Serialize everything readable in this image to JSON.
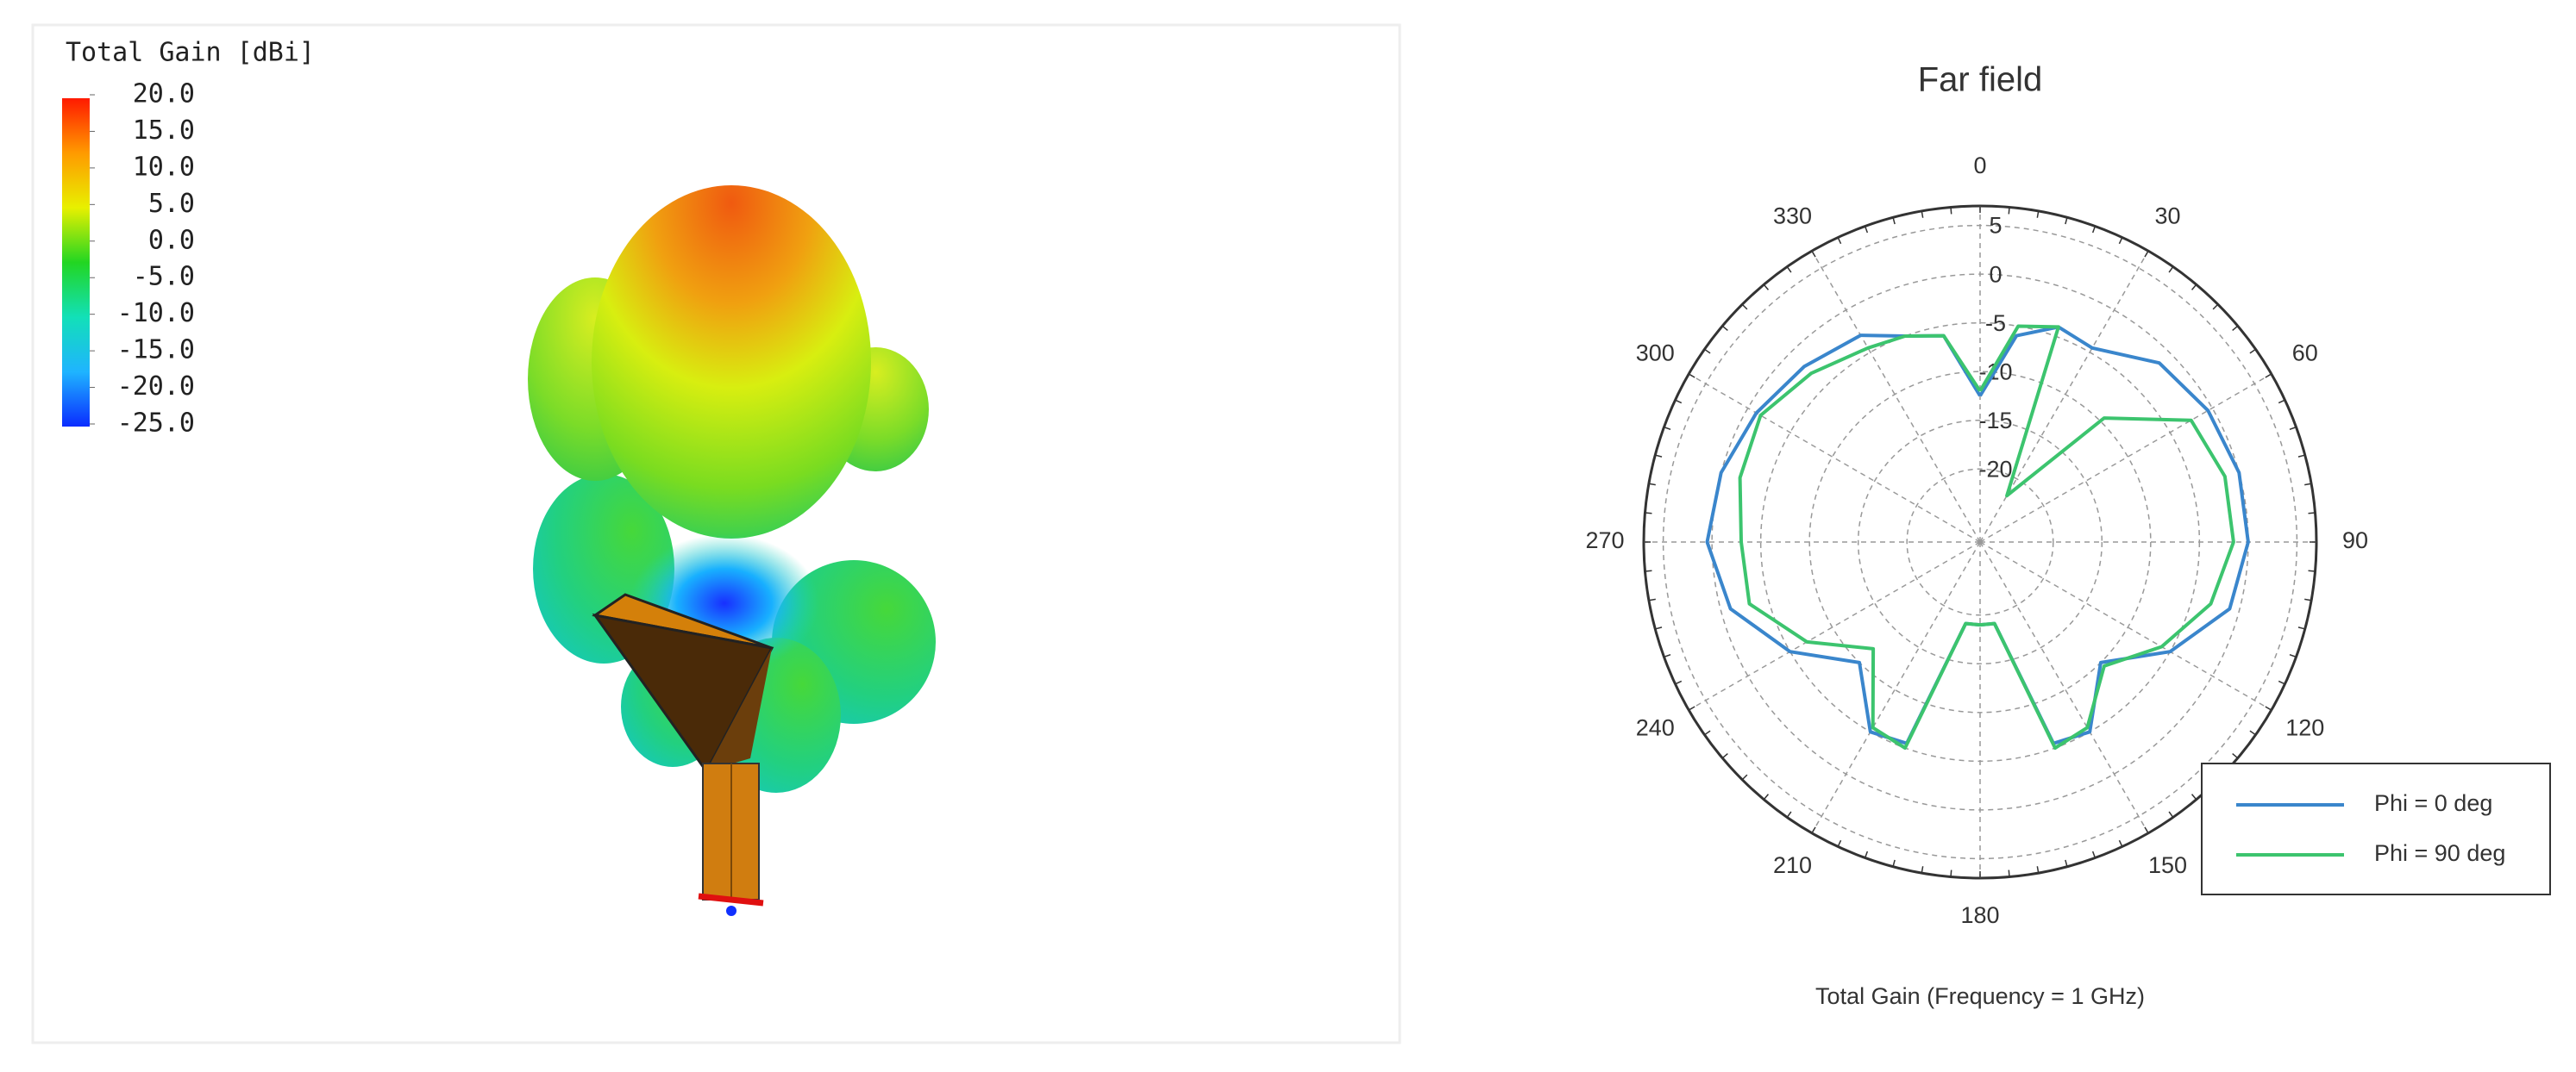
{
  "chart_data": [
    {
      "type": "colorbar",
      "title": "Total Gain [dBi]",
      "ylim": [
        -25,
        20
      ],
      "yticks": [
        {
          "value": 20,
          "label": "20.0"
        },
        {
          "value": 15,
          "label": "15.0"
        },
        {
          "value": 10,
          "label": "10.0"
        },
        {
          "value": 5,
          "label": "5.0"
        },
        {
          "value": 0,
          "label": "0.0"
        },
        {
          "value": -5,
          "label": "-5.0"
        },
        {
          "value": -10,
          "label": "-10.0"
        },
        {
          "value": -15,
          "label": "-15.0"
        },
        {
          "value": -20,
          "label": "-20.0"
        },
        {
          "value": -25,
          "label": "-25.0"
        }
      ],
      "colormap": [
        "#ff1a00",
        "#ff9a00",
        "#e8f000",
        "#22d622",
        "#12e0b8",
        "#1fb4ff",
        "#0a2cff"
      ]
    },
    {
      "type": "polar",
      "title": "Far field",
      "xlabel": "Total Gain (Frequency = 1 GHz)",
      "x": [
        0,
        10,
        20,
        30,
        45,
        60,
        75,
        90,
        105,
        120,
        135,
        150,
        160,
        170,
        180,
        190,
        200,
        210,
        225,
        240,
        255,
        270,
        285,
        300,
        315,
        330,
        340,
        350,
        360
      ],
      "xticks": [
        0,
        30,
        60,
        90,
        120,
        150,
        180,
        210,
        240,
        270,
        300,
        330
      ],
      "rlim": [
        -27.5,
        7
      ],
      "rticks": [
        5,
        0,
        -5,
        -10,
        -15,
        -20
      ],
      "grid": true,
      "legend": "lower right",
      "series": [
        {
          "name": "Phi = 0 deg",
          "color": "#3a86cc",
          "values": [
            -12.5,
            -6,
            -4,
            -4.5,
            -1.5,
            -0.5,
            0,
            0,
            -1,
            -5,
            -10,
            -5,
            -5.5,
            -19,
            -19,
            -19,
            -5.5,
            -5,
            -10,
            -5,
            -1,
            0.5,
            0,
            -1,
            -2,
            -3,
            -5,
            -6,
            -12.5
          ]
        },
        {
          "name": "Phi = 90 deg",
          "color": "#3cc46e",
          "values": [
            -12,
            -5,
            -4,
            -22,
            -9.5,
            -2.5,
            -1.5,
            -1.5,
            -3,
            -6,
            -9.5,
            -5.5,
            -5,
            -19,
            -19,
            -19,
            -5,
            -5.5,
            -12,
            -7,
            -3,
            -3,
            -2,
            -1.5,
            -3,
            -4.5,
            -5,
            -6,
            -12
          ]
        }
      ]
    }
  ]
}
